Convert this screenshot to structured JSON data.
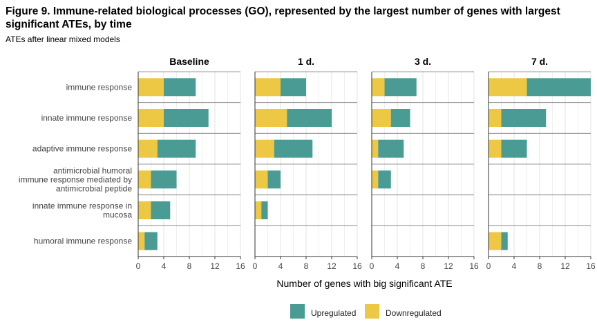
{
  "figure": {
    "title": "Figure 9. Immune-related biological processes (GO), represented by the largest number of genes with largest significant ATEs, by time",
    "subtitle": "ATEs after linear mixed models"
  },
  "chart_data": {
    "type": "bar",
    "orientation": "horizontal",
    "stacked": true,
    "categories": [
      "immune response",
      "innate immune response",
      "adaptive immune response",
      "antimicrobial humoral immune response mediated by antimicrobial peptide",
      "innate immune response in mucosa",
      "humoral immune response"
    ],
    "category_label_lines": [
      [
        "immune response"
      ],
      [
        "innate immune response"
      ],
      [
        "adaptive immune response"
      ],
      [
        "antimicrobial humoral",
        "immune response mediated by",
        "antimicrobial peptide"
      ],
      [
        "innate immune response in",
        "mucosa"
      ],
      [
        "humoral immune response"
      ]
    ],
    "panels": [
      {
        "title": "Baseline",
        "series": [
          {
            "name": "Downregulated",
            "values": [
              4,
              4,
              3,
              2,
              2,
              1
            ]
          },
          {
            "name": "Upregulated",
            "values": [
              5,
              7,
              6,
              4,
              3,
              2
            ]
          }
        ]
      },
      {
        "title": "1 d.",
        "series": [
          {
            "name": "Downregulated",
            "values": [
              4,
              5,
              3,
              2,
              1,
              null
            ]
          },
          {
            "name": "Upregulated",
            "values": [
              4,
              7,
              6,
              2,
              1,
              null
            ]
          }
        ]
      },
      {
        "title": "3 d.",
        "series": [
          {
            "name": "Downregulated",
            "values": [
              2,
              3,
              1,
              1,
              null,
              null
            ]
          },
          {
            "name": "Upregulated",
            "values": [
              5,
              3,
              4,
              2,
              null,
              null
            ]
          }
        ]
      },
      {
        "title": "7 d.",
        "series": [
          {
            "name": "Downregulated",
            "values": [
              6,
              2,
              2,
              null,
              null,
              2
            ]
          },
          {
            "name": "Upregulated",
            "values": [
              10,
              7,
              4,
              null,
              null,
              1
            ]
          }
        ]
      }
    ],
    "xlim": [
      0,
      16
    ],
    "xticks": [
      0,
      4,
      8,
      12,
      16
    ],
    "xlabel": "Number of genes with big significant ATE",
    "ylabel": "",
    "grid": true,
    "legend": {
      "position": "bottom",
      "entries": [
        {
          "name": "Upregulated",
          "color": "#4a9b94"
        },
        {
          "name": "Downregulated",
          "color": "#ecc845"
        }
      ]
    },
    "colors": {
      "Upregulated": "#4a9b94",
      "Downregulated": "#ecc845"
    }
  }
}
